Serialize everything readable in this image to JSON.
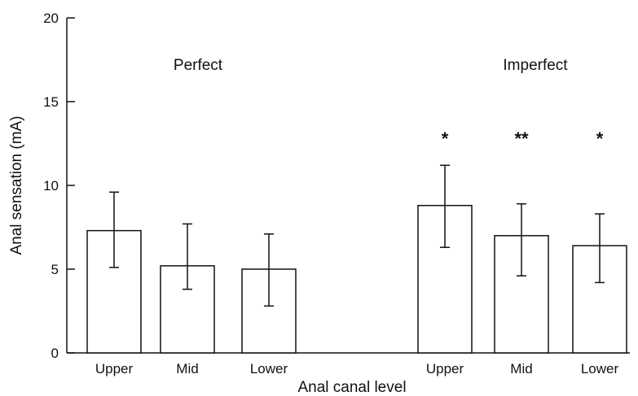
{
  "chart_data": {
    "type": "bar",
    "title": "",
    "xlabel": "Anal canal level",
    "ylabel": "Anal sensation (mA)",
    "ylim": [
      0,
      20
    ],
    "yticks": [
      0,
      5,
      10,
      15,
      20
    ],
    "grid": false,
    "groups": [
      {
        "label": "Perfect",
        "bars": [
          {
            "category": "Upper",
            "value": 7.3,
            "err_low": 5.1,
            "err_high": 9.6,
            "sig": ""
          },
          {
            "category": "Mid",
            "value": 5.2,
            "err_low": 3.8,
            "err_high": 7.7,
            "sig": ""
          },
          {
            "category": "Lower",
            "value": 5.0,
            "err_low": 2.8,
            "err_high": 7.1,
            "sig": ""
          }
        ]
      },
      {
        "label": "Imperfect",
        "bars": [
          {
            "category": "Upper",
            "value": 8.8,
            "err_low": 6.3,
            "err_high": 11.2,
            "sig": "*"
          },
          {
            "category": "Mid",
            "value": 7.0,
            "err_low": 4.6,
            "err_high": 8.9,
            "sig": "**"
          },
          {
            "category": "Lower",
            "value": 6.4,
            "err_low": 4.2,
            "err_high": 8.3,
            "sig": "*"
          }
        ]
      }
    ]
  },
  "colors": {
    "axis": "#111111",
    "bar_fill": "#ffffff",
    "bar_stroke": "#111111"
  }
}
